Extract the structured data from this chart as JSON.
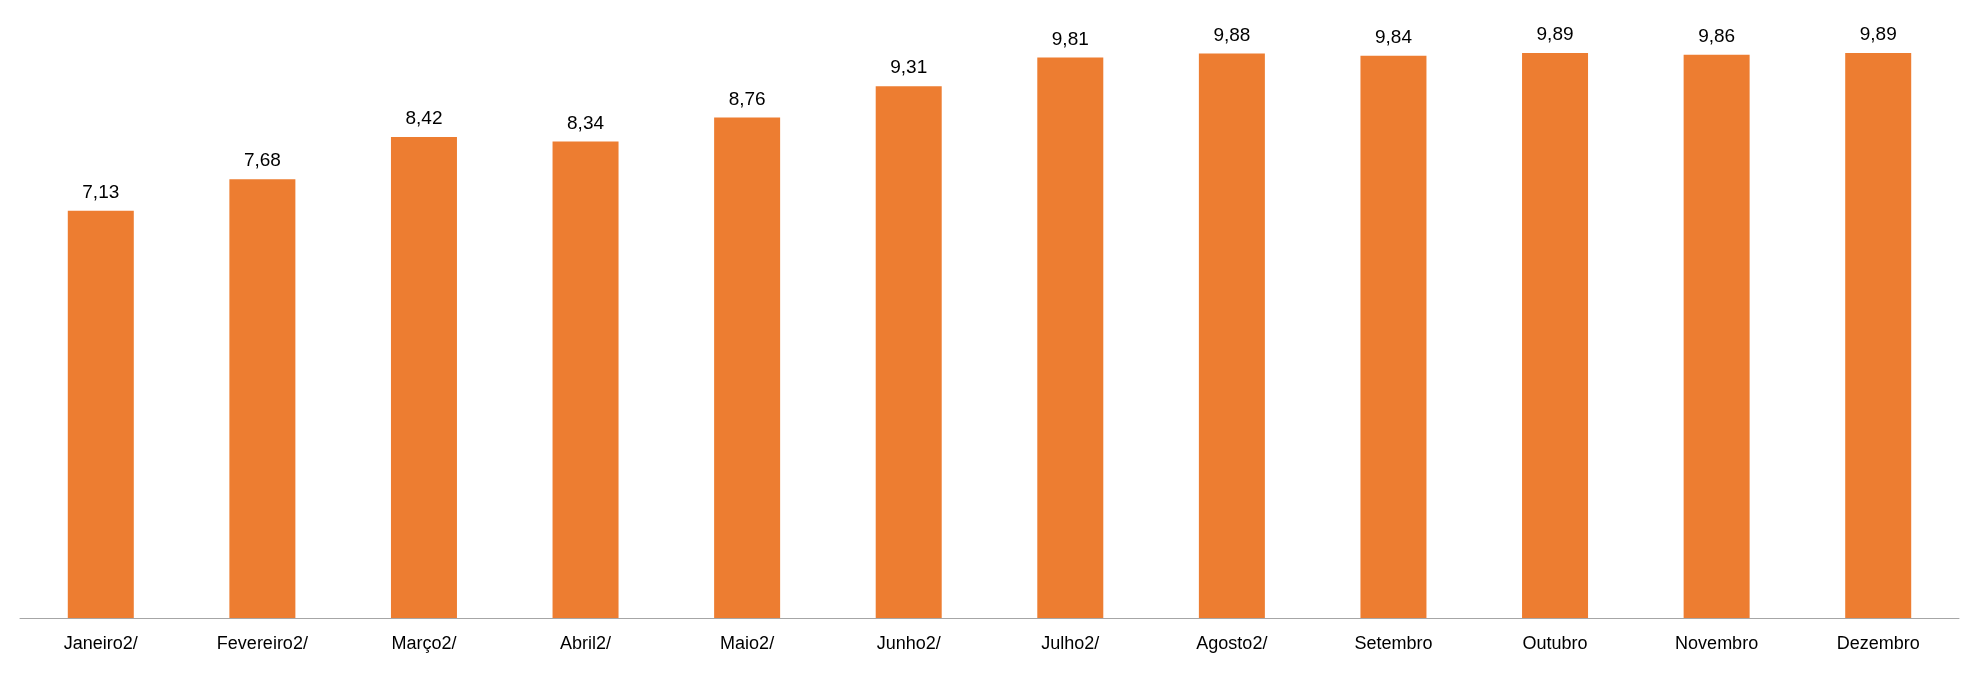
{
  "chart_data": {
    "type": "bar",
    "categories": [
      "Janeiro2/",
      "Fevereiro2/",
      "Março2/",
      "Abril2/",
      "Maio2/",
      "Junho2/",
      "Julho2/",
      "Agosto2/",
      "Setembro",
      "Outubro",
      "Novembro",
      "Dezembro"
    ],
    "values": [
      7.13,
      7.68,
      8.42,
      8.34,
      8.76,
      9.31,
      9.81,
      9.88,
      9.84,
      9.89,
      9.86,
      9.89
    ],
    "value_labels": [
      "7,13",
      "7,68",
      "8,42",
      "8,34",
      "8,76",
      "9,31",
      "9,81",
      "9,88",
      "9,84",
      "9,89",
      "9,86",
      "9,89"
    ],
    "color": "#ed7d31"
  }
}
